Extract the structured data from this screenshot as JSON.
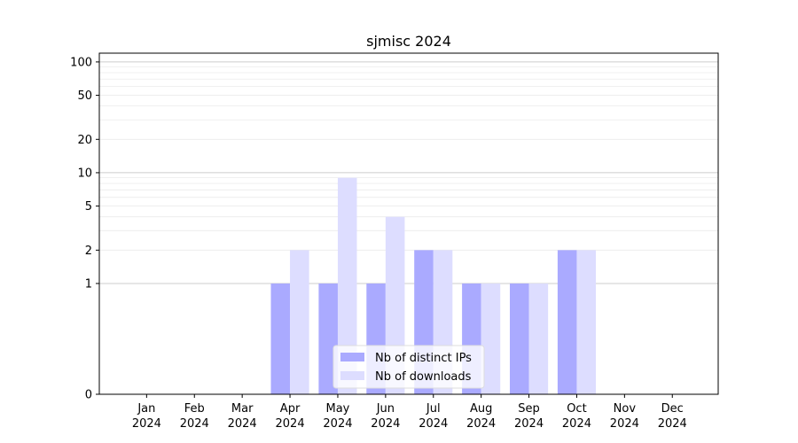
{
  "chart_data": {
    "type": "bar",
    "title": "sjmisc 2024",
    "xlabel": "",
    "ylabel": "",
    "y_scale": "symlog",
    "ylim": [
      0,
      120
    ],
    "y_ticks": [
      "0",
      "1",
      "2",
      "5",
      "10",
      "20",
      "50",
      "100"
    ],
    "grid": true,
    "categories": [
      {
        "month": "Jan",
        "year": "2024"
      },
      {
        "month": "Feb",
        "year": "2024"
      },
      {
        "month": "Mar",
        "year": "2024"
      },
      {
        "month": "Apr",
        "year": "2024"
      },
      {
        "month": "May",
        "year": "2024"
      },
      {
        "month": "Jun",
        "year": "2024"
      },
      {
        "month": "Jul",
        "year": "2024"
      },
      {
        "month": "Aug",
        "year": "2024"
      },
      {
        "month": "Sep",
        "year": "2024"
      },
      {
        "month": "Oct",
        "year": "2024"
      },
      {
        "month": "Nov",
        "year": "2024"
      },
      {
        "month": "Dec",
        "year": "2024"
      }
    ],
    "series": [
      {
        "name": "Nb of distinct IPs",
        "color": "#aaaaff",
        "values": [
          0,
          0,
          0,
          1,
          1,
          1,
          2,
          1,
          1,
          2,
          0,
          0
        ]
      },
      {
        "name": "Nb of downloads",
        "color": "#ddddff",
        "values": [
          0,
          0,
          0,
          2,
          9,
          4,
          2,
          1,
          1,
          2,
          0,
          0
        ]
      }
    ],
    "legend": {
      "placement": "bottom-center"
    }
  }
}
